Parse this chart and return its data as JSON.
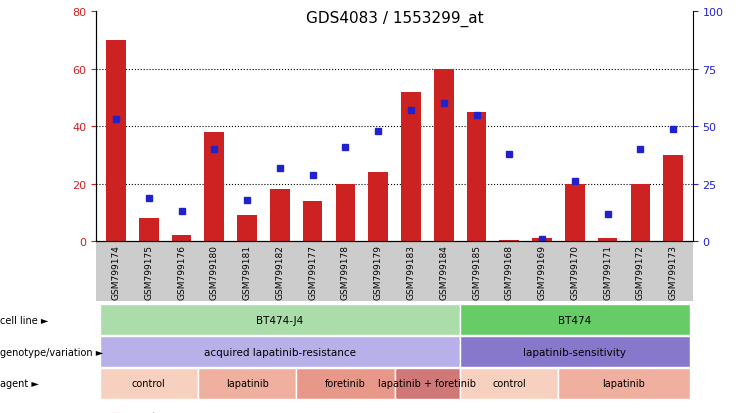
{
  "title": "GDS4083 / 1553299_at",
  "samples": [
    "GSM799174",
    "GSM799175",
    "GSM799176",
    "GSM799180",
    "GSM799181",
    "GSM799182",
    "GSM799177",
    "GSM799178",
    "GSM799179",
    "GSM799183",
    "GSM799184",
    "GSM799185",
    "GSM799168",
    "GSM799169",
    "GSM799170",
    "GSM799171",
    "GSM799172",
    "GSM799173"
  ],
  "counts": [
    70,
    8,
    2,
    38,
    9,
    18,
    14,
    20,
    24,
    52,
    60,
    45,
    0.5,
    1,
    20,
    1,
    20,
    30
  ],
  "percentiles": [
    53,
    19,
    13,
    40,
    18,
    32,
    29,
    41,
    48,
    57,
    60,
    55,
    38,
    1,
    26,
    12,
    40,
    49
  ],
  "bar_color": "#cc2222",
  "dot_color": "#2222cc",
  "ylim_left": [
    0,
    80
  ],
  "ylim_right": [
    0,
    100
  ],
  "yticks_left": [
    0,
    20,
    40,
    60,
    80
  ],
  "yticks_right": [
    0,
    25,
    50,
    75,
    100
  ],
  "grid_values": [
    20,
    40,
    60
  ],
  "cell_line_groups": [
    {
      "label": "BT474-J4",
      "start": 0,
      "end": 11,
      "color": "#aaddaa"
    },
    {
      "label": "BT474",
      "start": 11,
      "end": 18,
      "color": "#66cc66"
    }
  ],
  "genotype_groups": [
    {
      "label": "acquired lapatinib-resistance",
      "start": 0,
      "end": 11,
      "color": "#b8b0e8"
    },
    {
      "label": "lapatinib-sensitivity",
      "start": 11,
      "end": 18,
      "color": "#8878cc"
    }
  ],
  "agent_groups": [
    {
      "label": "control",
      "start": 0,
      "end": 3,
      "color": "#f8d0c0"
    },
    {
      "label": "lapatinib",
      "start": 3,
      "end": 6,
      "color": "#f0b0a0"
    },
    {
      "label": "foretinib",
      "start": 6,
      "end": 9,
      "color": "#e89888"
    },
    {
      "label": "lapatinib + foretinib",
      "start": 9,
      "end": 11,
      "color": "#d07878"
    },
    {
      "label": "control",
      "start": 11,
      "end": 14,
      "color": "#f8d0c0"
    },
    {
      "label": "lapatinib",
      "start": 14,
      "end": 18,
      "color": "#f0b0a0"
    }
  ],
  "row_labels": [
    "cell line",
    "genotype/variation",
    "agent"
  ],
  "legend_count_color": "#cc2222",
  "legend_dot_color": "#2222cc",
  "background_color": "#ffffff",
  "tick_label_color_left": "#cc2222",
  "tick_label_color_right": "#2222cc",
  "title_fontsize": 11,
  "bar_width": 0.6,
  "xtick_bg_color": "#cccccc"
}
